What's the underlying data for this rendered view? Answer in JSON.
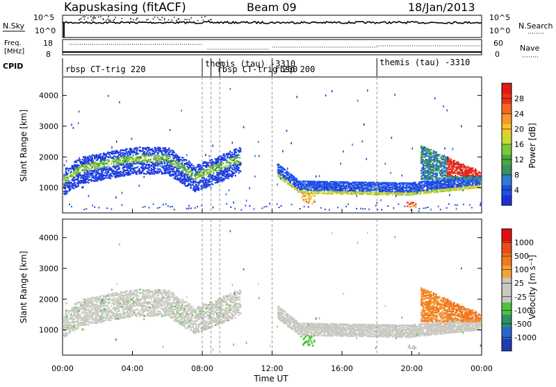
{
  "header": {
    "station": "Kapuskasing (fitACF)",
    "beam": "Beam 09",
    "date": "18/Jan/2013"
  },
  "top_panels": {
    "nsky_label": "N.Sky",
    "nsky_ticks": [
      "10^5",
      "10^0"
    ],
    "nsearch_label": "N.Search",
    "nsearch_ticks": [
      "10^5",
      "10^0"
    ],
    "freq_label_1": "Freq.",
    "freq_label_2": "[MHz]",
    "freq_ticks": [
      "18",
      "8"
    ],
    "nave_label": "Nave",
    "nave_ticks": [
      "60",
      "0"
    ],
    "cpid_label": "CPID"
  },
  "cpid_segments": [
    {
      "start_hour": 0.0,
      "label": "rbsp CT-trig 220"
    },
    {
      "start_hour": 8.0,
      "label": "themis (tau) -3310"
    },
    {
      "start_hour": 8.7,
      "label": "rbsp CT-trig 200"
    },
    {
      "start_hour": 12.0,
      "label": "rbsp 200"
    },
    {
      "start_hour": 18.0,
      "label": "themis (tau) -3310"
    }
  ],
  "chart_data": [
    {
      "type": "heatmap",
      "panel": "power",
      "xlabel": "",
      "ylabel": "Slant Range [km]",
      "x_range_hours": [
        0,
        24
      ],
      "ylim": [
        180,
        4600
      ],
      "yticks": [
        1000,
        2000,
        3000,
        4000
      ],
      "colorbar": {
        "label": "Power [dB]",
        "range": [
          0,
          32
        ],
        "ticks": [
          "28",
          "24",
          "20",
          "16",
          "12",
          "8",
          "4"
        ],
        "tick_values": [
          28,
          24,
          20,
          16,
          12,
          8,
          4
        ],
        "colors": [
          "#1f2fd8",
          "#1f4fe8",
          "#2e7bd0",
          "#3a8f5a",
          "#4aa840",
          "#7dc83a",
          "#c8d836",
          "#f5c531",
          "#f59a2a",
          "#f26a22",
          "#e8321c",
          "#e01a14"
        ]
      }
    },
    {
      "type": "heatmap",
      "panel": "velocity",
      "xlabel": "Time UT",
      "ylabel": "Slant Range [km]",
      "x_range_hours": [
        0,
        24
      ],
      "ylim": [
        180,
        4600
      ],
      "yticks": [
        1000,
        2000,
        3000,
        4000
      ],
      "xticks": [
        "00:00",
        "04:00",
        "08:00",
        "12:00",
        "16:00",
        "20:00",
        "00:00"
      ],
      "colorbar": {
        "label": "Velocity [m s⁻¹]",
        "ticks": [
          "1000",
          "500",
          "100",
          "25",
          "-25",
          "-100",
          "-500",
          "-1000"
        ],
        "colors": [
          "#1f3cb0",
          "#2a66c8",
          "#2e8f6a",
          "#4fc33c",
          "#c8c8c0",
          "#c8c8c0",
          "#f5a23a",
          "#f0781f",
          "#ea4a1c",
          "#e01010"
        ]
      }
    }
  ],
  "axis": {
    "time_label": "Time UT",
    "dashed_lines_hours": [
      8.0,
      8.5,
      9.0,
      12.0,
      18.0
    ]
  }
}
